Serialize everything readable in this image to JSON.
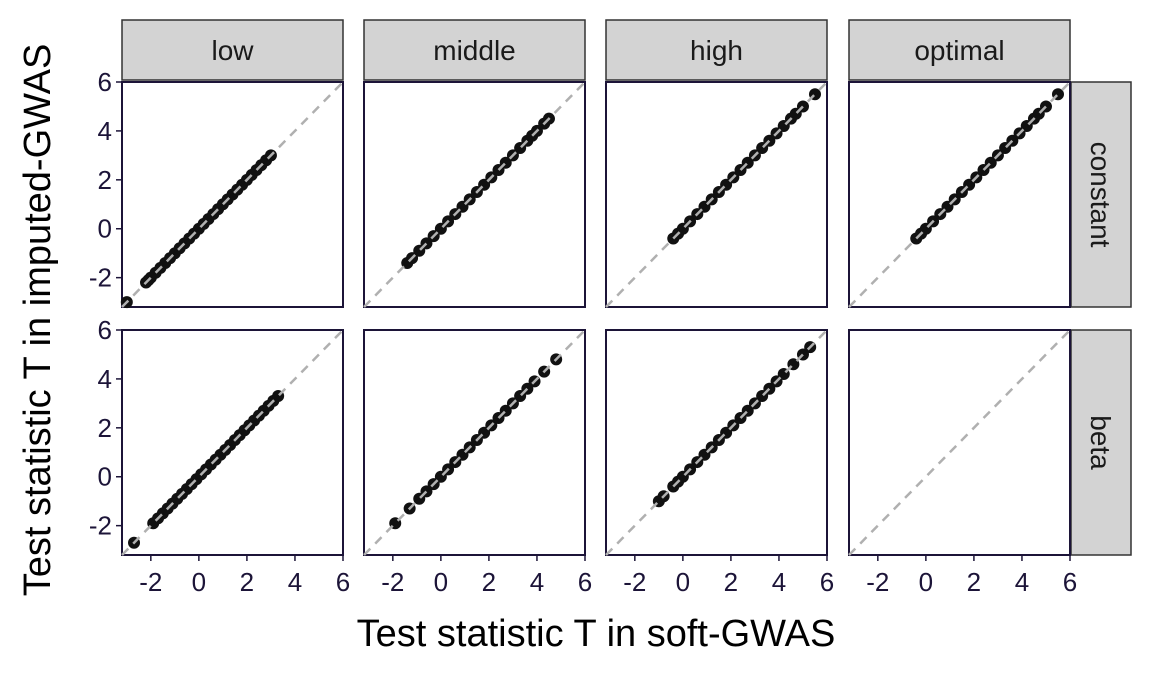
{
  "chart_data": {
    "type": "scatter",
    "xlabel": "Test statistic T in soft-GWAS",
    "ylabel": "Test statistic T in imputed-GWAS",
    "xlim": [
      -3.2,
      6
    ],
    "ylim": [
      -3.2,
      6
    ],
    "x_ticks": [
      "-2",
      "0",
      "2",
      "4",
      "6"
    ],
    "y_ticks": [
      "-2",
      "0",
      "2",
      "4",
      "6"
    ],
    "column_facets": [
      "low",
      "middle",
      "high",
      "optimal"
    ],
    "row_facets": [
      "constant",
      "beta"
    ],
    "reference_line": "y = x (dashed, grey)",
    "grid": false,
    "colors": {
      "points": "#111111",
      "reference_line": "#b0b0b0",
      "strip": "#d3d3d3",
      "axis": "#1c1438"
    },
    "panels": [
      {
        "row": "constant",
        "col": "low",
        "x": [
          -3.0,
          -2.2,
          -2.1,
          -2.0,
          -1.8,
          -1.6,
          -1.4,
          -1.2,
          -1.0,
          -0.8,
          -0.6,
          -0.4,
          -0.2,
          0.0,
          0.2,
          0.4,
          0.6,
          0.8,
          1.0,
          1.2,
          1.4,
          1.6,
          1.8,
          2.0,
          2.2,
          2.4,
          2.6,
          2.8,
          3.0
        ],
        "y": [
          -3.0,
          -2.2,
          -2.1,
          -2.0,
          -1.8,
          -1.6,
          -1.4,
          -1.2,
          -1.0,
          -0.8,
          -0.6,
          -0.4,
          -0.2,
          0.0,
          0.2,
          0.4,
          0.6,
          0.8,
          1.0,
          1.2,
          1.4,
          1.6,
          1.8,
          2.0,
          2.2,
          2.4,
          2.6,
          2.8,
          3.0
        ]
      },
      {
        "row": "constant",
        "col": "middle",
        "x": [
          -1.4,
          -1.2,
          -0.9,
          -0.6,
          -0.3,
          0.0,
          0.3,
          0.6,
          0.9,
          1.2,
          1.5,
          1.8,
          2.1,
          2.4,
          2.7,
          3.0,
          3.3,
          3.6,
          3.8,
          4.0,
          4.3,
          4.5
        ],
        "y": [
          -1.4,
          -1.2,
          -0.9,
          -0.6,
          -0.3,
          0.0,
          0.3,
          0.6,
          0.9,
          1.2,
          1.5,
          1.8,
          2.1,
          2.4,
          2.7,
          3.0,
          3.3,
          3.6,
          3.8,
          4.0,
          4.3,
          4.5
        ]
      },
      {
        "row": "constant",
        "col": "high",
        "x": [
          -0.4,
          -0.2,
          0.0,
          0.3,
          0.6,
          0.9,
          1.2,
          1.5,
          1.8,
          2.1,
          2.4,
          2.7,
          3.0,
          3.3,
          3.6,
          3.9,
          4.2,
          4.5,
          4.7,
          5.0,
          5.5
        ],
        "y": [
          -0.4,
          -0.2,
          0.0,
          0.3,
          0.6,
          0.9,
          1.2,
          1.5,
          1.8,
          2.1,
          2.4,
          2.7,
          3.0,
          3.3,
          3.6,
          3.9,
          4.2,
          4.5,
          4.7,
          5.0,
          5.5
        ]
      },
      {
        "row": "constant",
        "col": "optimal",
        "x": [
          -0.4,
          -0.2,
          0.0,
          0.3,
          0.6,
          0.9,
          1.2,
          1.5,
          1.8,
          2.1,
          2.4,
          2.7,
          3.0,
          3.3,
          3.6,
          3.9,
          4.2,
          4.5,
          4.7,
          5.0,
          5.5
        ],
        "y": [
          -0.4,
          -0.2,
          0.0,
          0.3,
          0.6,
          0.9,
          1.2,
          1.5,
          1.8,
          2.1,
          2.4,
          2.7,
          3.0,
          3.3,
          3.6,
          3.9,
          4.2,
          4.5,
          4.7,
          5.0,
          5.5
        ]
      },
      {
        "row": "beta",
        "col": "low",
        "x": [
          -2.7,
          -1.9,
          -1.7,
          -1.5,
          -1.3,
          -1.1,
          -0.9,
          -0.7,
          -0.5,
          -0.3,
          -0.1,
          0.1,
          0.3,
          0.5,
          0.7,
          0.9,
          1.1,
          1.3,
          1.5,
          1.7,
          1.9,
          2.1,
          2.3,
          2.5,
          2.7,
          2.9,
          3.1,
          3.3
        ],
        "y": [
          -2.7,
          -1.9,
          -1.7,
          -1.5,
          -1.3,
          -1.1,
          -0.9,
          -0.7,
          -0.5,
          -0.3,
          -0.1,
          0.1,
          0.3,
          0.5,
          0.7,
          0.9,
          1.1,
          1.3,
          1.5,
          1.7,
          1.9,
          2.1,
          2.3,
          2.5,
          2.7,
          2.9,
          3.1,
          3.3
        ]
      },
      {
        "row": "beta",
        "col": "middle",
        "x": [
          -1.9,
          -1.3,
          -0.9,
          -0.6,
          -0.3,
          0.0,
          0.3,
          0.6,
          0.9,
          1.2,
          1.5,
          1.8,
          2.1,
          2.4,
          2.7,
          3.0,
          3.3,
          3.6,
          3.9,
          4.3,
          4.8
        ],
        "y": [
          -1.9,
          -1.3,
          -0.9,
          -0.6,
          -0.3,
          0.0,
          0.3,
          0.6,
          0.9,
          1.2,
          1.5,
          1.8,
          2.1,
          2.4,
          2.7,
          3.0,
          3.3,
          3.6,
          3.9,
          4.3,
          4.8
        ]
      },
      {
        "row": "beta",
        "col": "high",
        "x": [
          -1.0,
          -0.8,
          -0.4,
          -0.2,
          0.0,
          0.3,
          0.6,
          0.9,
          1.2,
          1.5,
          1.8,
          2.1,
          2.4,
          2.7,
          3.0,
          3.3,
          3.6,
          3.9,
          4.2,
          4.6,
          5.0,
          5.3
        ],
        "y": [
          -1.0,
          -0.8,
          -0.4,
          -0.2,
          0.0,
          0.3,
          0.6,
          0.9,
          1.2,
          1.5,
          1.8,
          2.1,
          2.4,
          2.7,
          3.0,
          3.3,
          3.6,
          3.9,
          4.2,
          4.6,
          5.0,
          5.3
        ]
      },
      {
        "row": "beta",
        "col": "optimal",
        "x": [],
        "y": []
      }
    ]
  }
}
